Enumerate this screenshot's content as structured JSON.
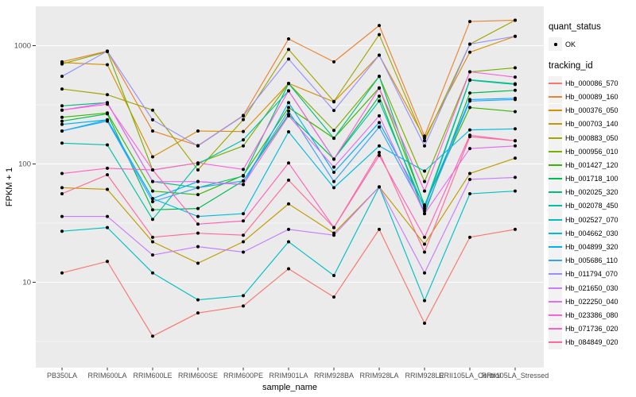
{
  "chart": {
    "chart_data": {
      "type": "line",
      "title": "",
      "xlabel": "sample_name",
      "ylabel": "FPKM + 1",
      "y_scale": "log10",
      "y_ticks": [
        10,
        100,
        1000
      ],
      "y_tick_labels": [
        "10",
        "100",
        "1000"
      ],
      "y_minor_ticks": [
        3.162,
        31.62,
        316.2
      ],
      "ylim": [
        2,
        2200
      ],
      "grid": "on",
      "legend_position": "right",
      "point_marker": "black dot (quant_status OK)",
      "categories": [
        "PB350LA",
        "RRIM600LA",
        "RRIM600LE",
        "RRIM600SE",
        "RRIM600PE",
        "RRIM901LA",
        "RRIM928BA",
        "RRIM928LA",
        "RRIM928LE",
        "RRII105LA_Control",
        "RRII105LA_Stressed"
      ],
      "series": [
        {
          "name": "Hb_000086_570",
          "color": "#F8766D",
          "values": [
            12,
            15,
            3.5,
            5.5,
            6.3,
            13,
            7.5,
            28,
            4.5,
            24,
            28
          ]
        },
        {
          "name": "Hb_000089_160",
          "color": "#EA8331",
          "values": [
            730,
            900,
            190,
            143,
            257,
            1140,
            730,
            1480,
            172,
            1600,
            1640
          ]
        },
        {
          "name": "Hb_000376_050",
          "color": "#D89000",
          "values": [
            720,
            690,
            115,
            190,
            188,
            480,
            335,
            830,
            165,
            880,
            1200
          ]
        },
        {
          "name": "Hb_000703_140",
          "color": "#C09B00",
          "values": [
            63,
            61,
            22,
            14.5,
            22,
            46,
            26,
            64,
            21,
            83,
            112
          ]
        },
        {
          "name": "Hb_000883_050",
          "color": "#A3A500",
          "values": [
            430,
            385,
            285,
            89,
            237,
            930,
            338,
            1240,
            157,
            1030,
            1640
          ]
        },
        {
          "name": "Hb_000956_010",
          "color": "#7CAE00",
          "values": [
            700,
            890,
            89,
            102,
            142,
            480,
            192,
            550,
            71,
            600,
            650
          ]
        },
        {
          "name": "Hb_001427_120",
          "color": "#39B600",
          "values": [
            248,
            270,
            59,
            55,
            80,
            300,
            165,
            440,
            45,
            300,
            277
          ]
        },
        {
          "name": "Hb_001718_100",
          "color": "#00BB4E",
          "values": [
            230,
            265,
            41,
            42,
            72,
            262,
            110,
            374,
            38,
            398,
            419
          ]
        },
        {
          "name": "Hb_002025_320",
          "color": "#00BF7D",
          "values": [
            310,
            330,
            71,
            63,
            79,
            478,
            165,
            550,
            44,
            515,
            476
          ]
        },
        {
          "name": "Hb_002078_450",
          "color": "#00C1A3",
          "values": [
            150,
            145,
            34,
            100,
            160,
            415,
            110,
            340,
            42,
            510,
            470
          ]
        },
        {
          "name": "Hb_002527_070",
          "color": "#00BFC4",
          "values": [
            27,
            29,
            12,
            7.1,
            7.7,
            22,
            11.4,
            64,
            7,
            56,
            59
          ]
        },
        {
          "name": "Hb_004662_030",
          "color": "#00BAE0",
          "values": [
            190,
            236,
            51,
            36,
            38,
            187,
            63,
            142,
            87,
            194,
            198
          ]
        },
        {
          "name": "Hb_004899_320",
          "color": "#00B0F6",
          "values": [
            216,
            236,
            51,
            71,
            67,
            330,
            85,
            224,
            44,
            350,
            359
          ]
        },
        {
          "name": "Hb_005686_110",
          "color": "#35A2FF",
          "values": [
            190,
            230,
            48,
            63,
            72,
            280,
            71,
            205,
            40,
            340,
            350
          ]
        },
        {
          "name": "Hb_011794_070",
          "color": "#9590FF",
          "values": [
            550,
            900,
            236,
            142,
            255,
            770,
            283,
            830,
            142,
            1030,
            1200
          ]
        },
        {
          "name": "Hb_021650_030",
          "color": "#C77CFF",
          "values": [
            36,
            36,
            17,
            20,
            18,
            28,
            25,
            64,
            12,
            74,
            77
          ]
        },
        {
          "name": "Hb_022250_040",
          "color": "#E76BF3",
          "values": [
            285,
            330,
            71,
            71,
            67,
            255,
            94,
            255,
            38,
            135,
            142
          ]
        },
        {
          "name": "Hb_023386_080",
          "color": "#FA62DB",
          "values": [
            285,
            320,
            89,
            102,
            90,
            415,
            110,
            437,
            59,
            601,
            542
          ]
        },
        {
          "name": "Hb_071736_020",
          "color": "#FF62BC",
          "values": [
            83,
            92,
            89,
            31,
            33,
            102,
            29,
            118,
            24,
            175,
            157
          ]
        },
        {
          "name": "Hb_084849_020",
          "color": "#FF6A98",
          "values": [
            56,
            81,
            24,
            26,
            25,
            73,
            29,
            125,
            18,
            170,
            157
          ]
        }
      ]
    },
    "legend": {
      "quant_status_title": "quant_status",
      "quant_status_items": [
        "OK"
      ],
      "tracking_id_title": "tracking_id"
    },
    "colors": {
      "panel_bg": "#EBEBEB",
      "grid_major": "#FFFFFF",
      "grid_minor": "#FFFFFF",
      "axis_text": "#4D4D4D",
      "axis_title": "#000000",
      "tick_mark": "#333333",
      "point": "#000000",
      "legend_key_bg": "#F2F2F2"
    }
  }
}
